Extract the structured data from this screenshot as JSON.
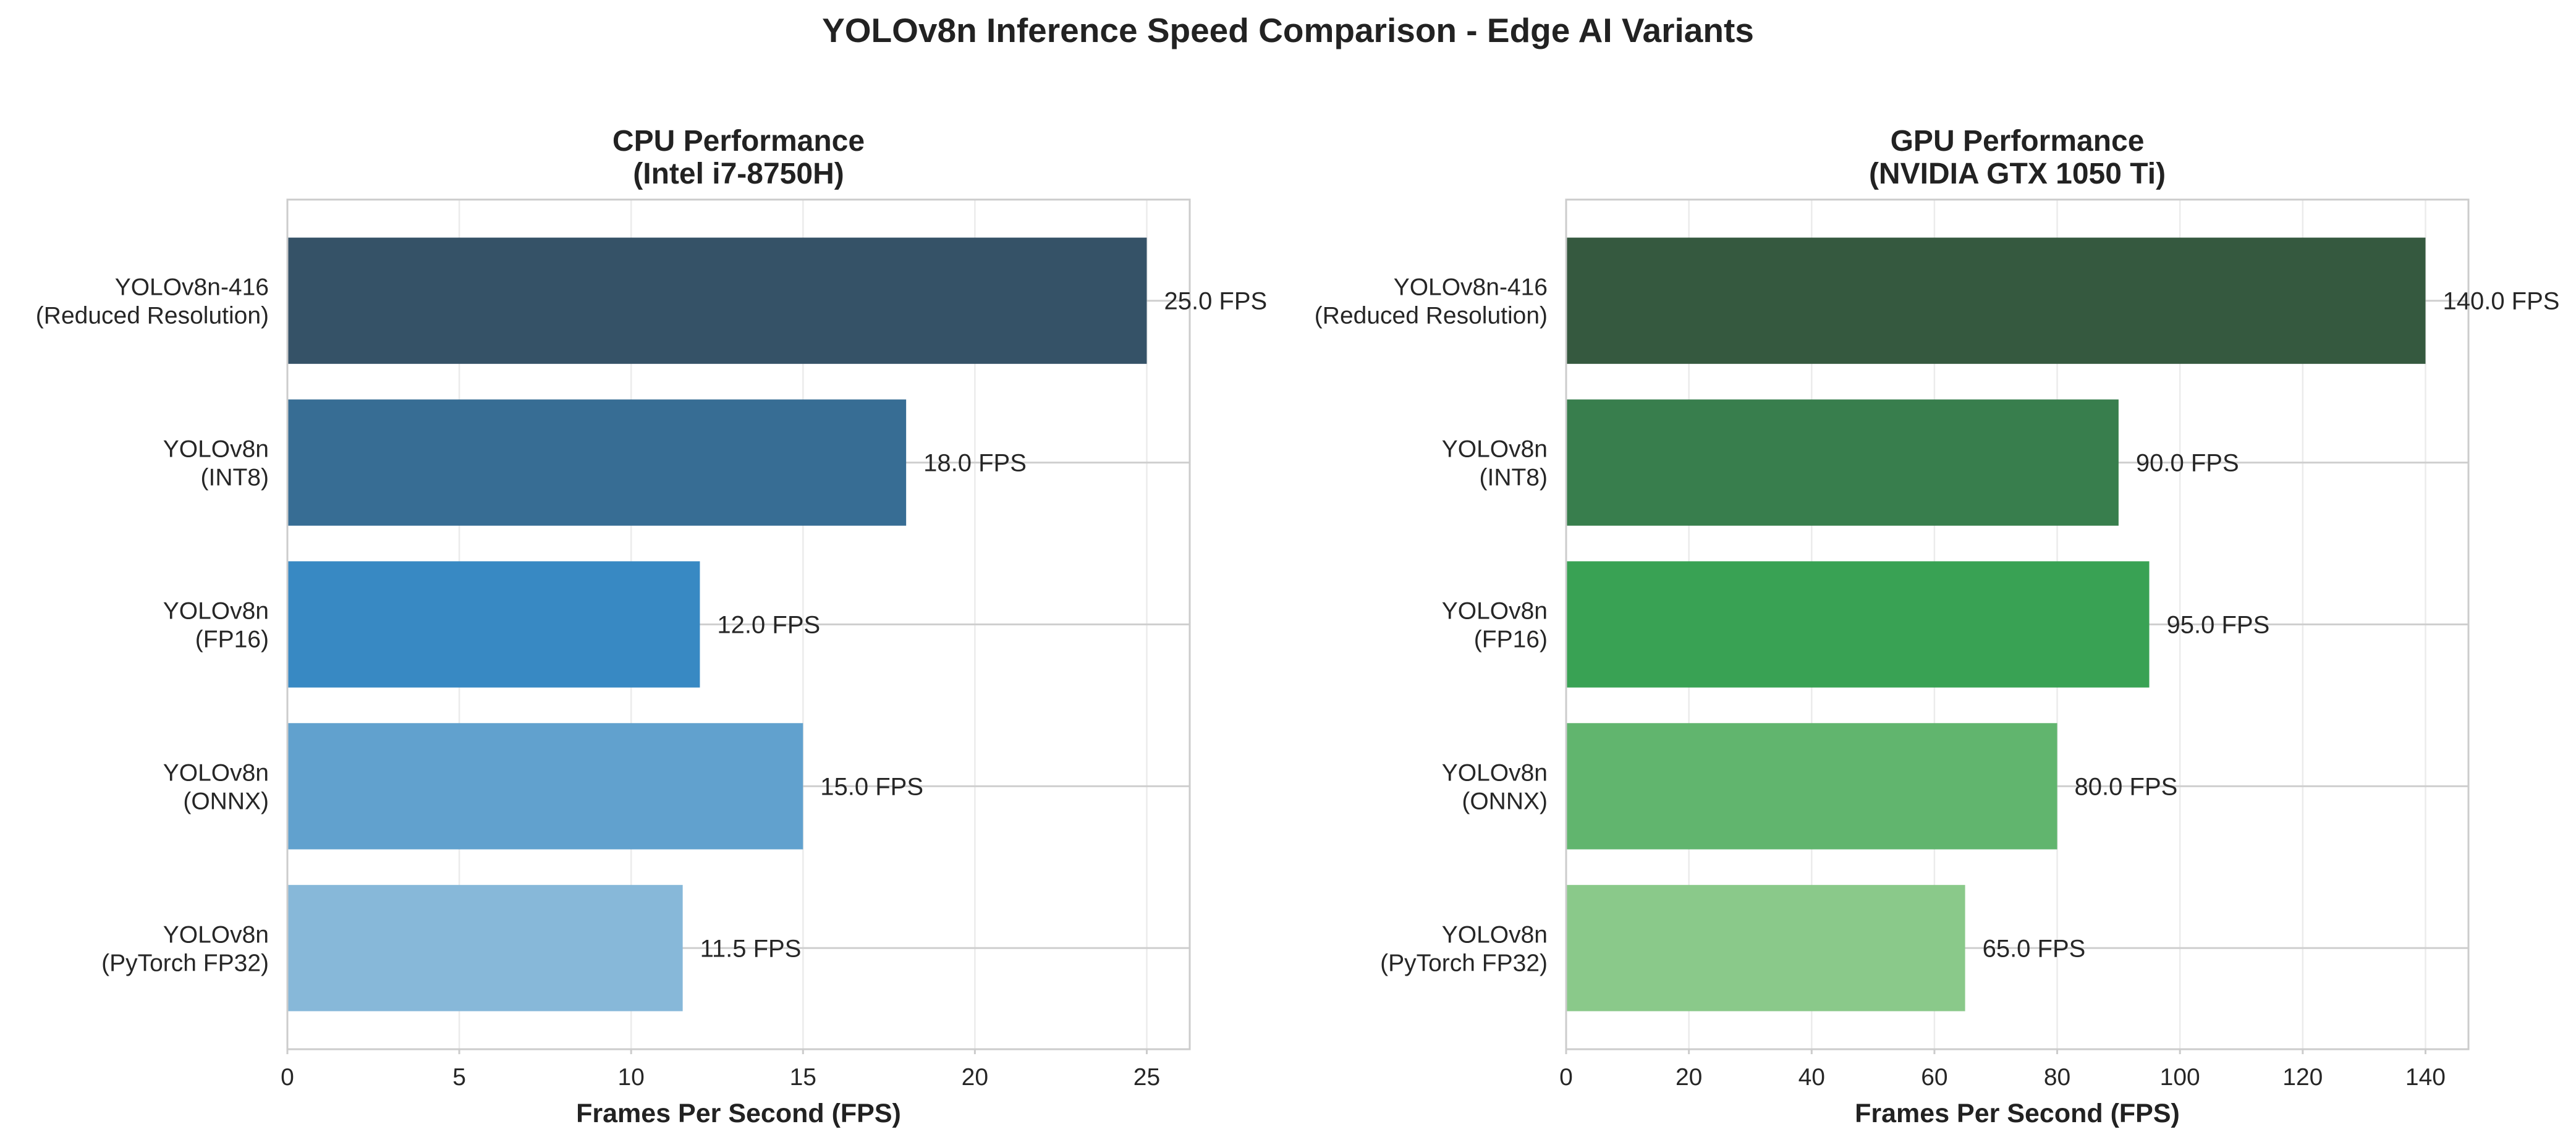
{
  "chart_title": "YOLOv8n Inference Speed Comparison - Edge AI Variants",
  "chart_data": [
    {
      "type": "bar",
      "orientation": "horizontal",
      "title": "CPU Performance\n(Intel i7-8750H)",
      "xlabel": "Frames Per Second (FPS)",
      "ylabel": "",
      "xlim": [
        0,
        26.25
      ],
      "xticks": [
        0,
        5,
        10,
        15,
        20,
        25
      ],
      "grid": true,
      "categories": [
        "YOLOv8n-416\n(Reduced Resolution)",
        "YOLOv8n\n(INT8)",
        "YOLOv8n\n(FP16)",
        "YOLOv8n\n(ONNX)",
        "YOLOv8n\n(PyTorch FP32)"
      ],
      "values": [
        25.0,
        18.0,
        12.0,
        15.0,
        11.5
      ],
      "data_labels": [
        "25.0 FPS",
        "18.0 FPS",
        "12.0 FPS",
        "15.0 FPS",
        "11.5 FPS"
      ],
      "colors": [
        "#355267",
        "#376d94",
        "#3889c3",
        "#61a1ce",
        "#87b8d9"
      ]
    },
    {
      "type": "bar",
      "orientation": "horizontal",
      "title": "GPU Performance\n(NVIDIA GTX 1050 Ti)",
      "xlabel": "Frames Per Second (FPS)",
      "ylabel": "",
      "xlim": [
        0,
        147
      ],
      "xticks": [
        0,
        20,
        40,
        60,
        80,
        100,
        120,
        140
      ],
      "grid": true,
      "categories": [
        "YOLOv8n-416\n(Reduced Resolution)",
        "YOLOv8n\n(INT8)",
        "YOLOv8n\n(FP16)",
        "YOLOv8n\n(ONNX)",
        "YOLOv8n\n(PyTorch FP32)"
      ],
      "values": [
        140.0,
        90.0,
        95.0,
        80.0,
        65.0
      ],
      "data_labels": [
        "140.0 FPS",
        "90.0 FPS",
        "95.0 FPS",
        "80.0 FPS",
        "65.0 FPS"
      ],
      "colors": [
        "#35593f",
        "#387e4d",
        "#39a254",
        "#61b56e",
        "#8ac98a"
      ]
    }
  ]
}
